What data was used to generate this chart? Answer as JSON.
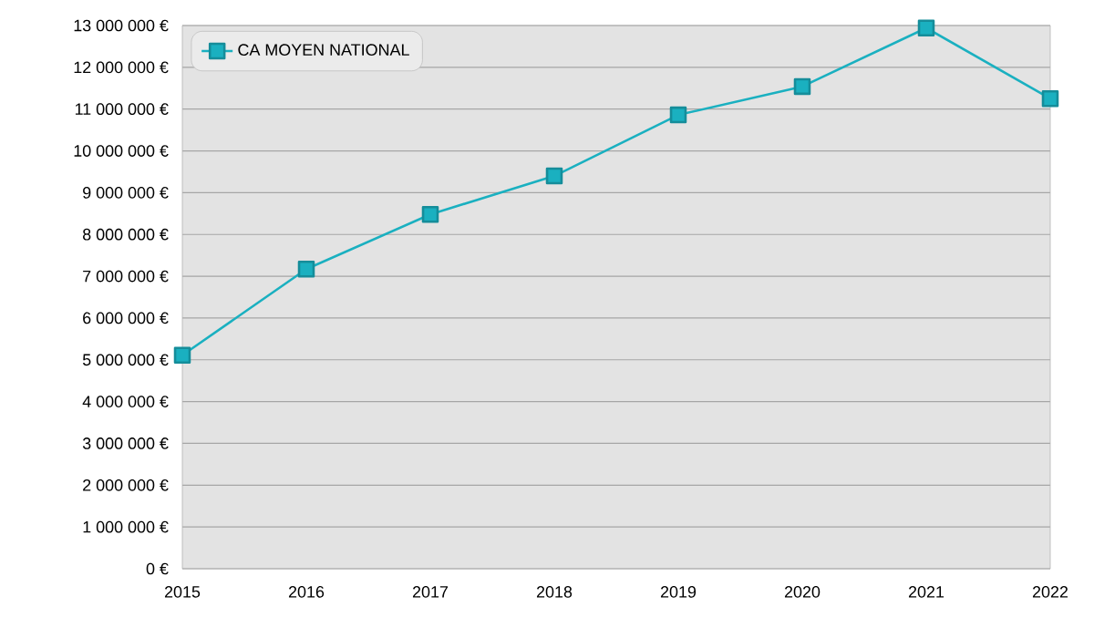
{
  "chart_data": {
    "type": "line",
    "categories": [
      "2015",
      "2016",
      "2017",
      "2018",
      "2019",
      "2020",
      "2021",
      "2022"
    ],
    "series": [
      {
        "name": "CA MOYEN NATIONAL",
        "color": "#1ab0c0",
        "values": [
          5110000,
          7170000,
          8480000,
          9400000,
          10860000,
          11540000,
          12940000,
          11250000
        ]
      }
    ],
    "ylim": [
      0,
      13000000
    ],
    "yticks": [
      {
        "value": 0,
        "label": "0 €"
      },
      {
        "value": 1000000,
        "label": "1 000 000 €"
      },
      {
        "value": 2000000,
        "label": "2 000 000 €"
      },
      {
        "value": 3000000,
        "label": "3 000 000 €"
      },
      {
        "value": 4000000,
        "label": "4 000 000 €"
      },
      {
        "value": 5000000,
        "label": "5 000 000 €"
      },
      {
        "value": 6000000,
        "label": "6 000 000 €"
      },
      {
        "value": 7000000,
        "label": "7 000 000 €"
      },
      {
        "value": 8000000,
        "label": "8 000 000 €"
      },
      {
        "value": 9000000,
        "label": "9 000 000 €"
      },
      {
        "value": 10000000,
        "label": "10 000 000 €"
      },
      {
        "value": 11000000,
        "label": "11 000 000 €"
      },
      {
        "value": 12000000,
        "label": "12 000 000 €"
      },
      {
        "value": 13000000,
        "label": "13 000 000 €"
      }
    ],
    "grid": "y",
    "legend": "top left",
    "marker": "square",
    "line_style": "solid"
  }
}
